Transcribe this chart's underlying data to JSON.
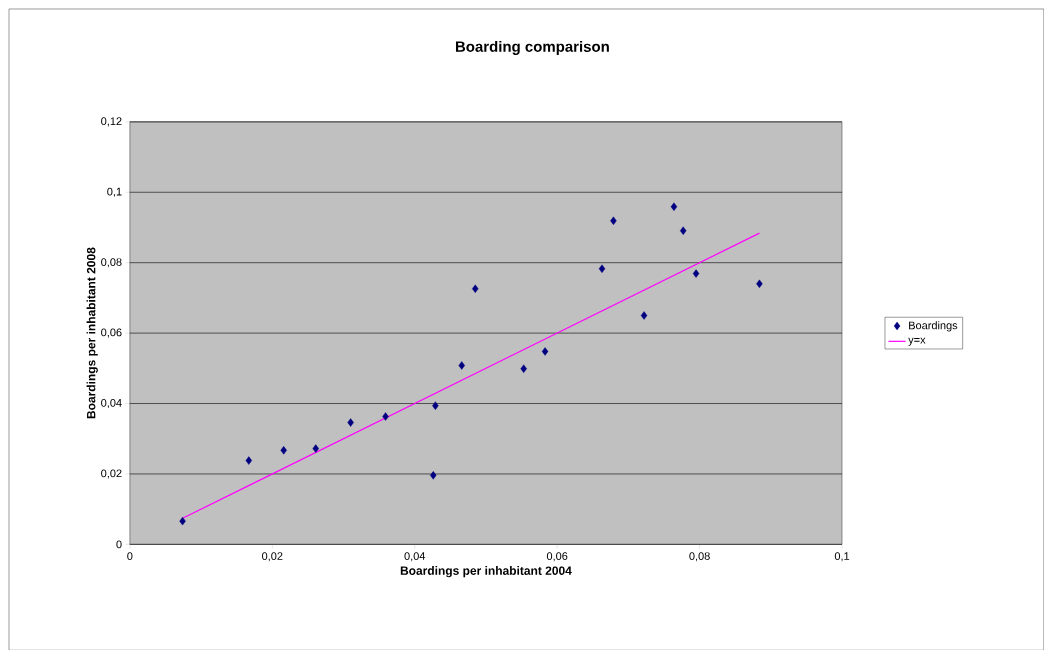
{
  "chart_data": {
    "type": "scatter",
    "title": "Boarding comparison",
    "xlabel": "Boardings per inhabitant 2004",
    "ylabel": "Boardings per inhabitant 2008",
    "series": [
      {
        "name": "Boardings",
        "color": "#000080",
        "marker": "diamond",
        "x": [
          0.0074,
          0.0167,
          0.0216,
          0.0261,
          0.031,
          0.0359,
          0.0429,
          0.0426,
          0.0466,
          0.0485,
          0.0553,
          0.0583,
          0.0663,
          0.0679,
          0.0722,
          0.0764,
          0.0777,
          0.0795,
          0.0884
        ],
        "values": [
          0.0066,
          0.0238,
          0.0267,
          0.0272,
          0.0346,
          0.0363,
          0.0394,
          0.0196,
          0.0508,
          0.0726,
          0.0499,
          0.0548,
          0.0783,
          0.0919,
          0.065,
          0.0959,
          0.0891,
          0.0769,
          0.074
        ]
      },
      {
        "name": "y=x",
        "type": "line",
        "color": "#ff00ff",
        "marker": "none",
        "line_style": "solid",
        "x": [
          0.0074,
          0.0884
        ],
        "values": [
          0.0074,
          0.0884
        ]
      }
    ],
    "xlim": [
      0,
      0.1
    ],
    "ylim": [
      0,
      0.12
    ],
    "xticks": [
      {
        "value": 0,
        "label": "0"
      },
      {
        "value": 0.02,
        "label": "0,02"
      },
      {
        "value": 0.04,
        "label": "0,04"
      },
      {
        "value": 0.06,
        "label": "0,06"
      },
      {
        "value": 0.08,
        "label": "0,08"
      },
      {
        "value": 0.1,
        "label": "0,1"
      }
    ],
    "yticks": [
      {
        "value": 0,
        "label": "0"
      },
      {
        "value": 0.02,
        "label": "0,02"
      },
      {
        "value": 0.04,
        "label": "0,04"
      },
      {
        "value": 0.06,
        "label": "0,06"
      },
      {
        "value": 0.08,
        "label": "0,08"
      },
      {
        "value": 0.1,
        "label": "0,1"
      },
      {
        "value": 0.12,
        "label": "0,12"
      }
    ],
    "grid": "y",
    "legend": "right"
  }
}
